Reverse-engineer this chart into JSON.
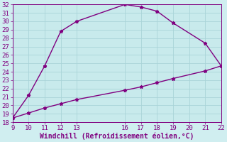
{
  "xlabel": "Windchill (Refroidissement éolien,°C)",
  "curve1_x": [
    9,
    10,
    11,
    12,
    13,
    16,
    17,
    18,
    19,
    21,
    22
  ],
  "curve1_y": [
    18.5,
    21.2,
    24.7,
    28.8,
    30.0,
    32.0,
    31.7,
    31.2,
    29.8,
    27.4,
    24.7
  ],
  "curve2_x": [
    9,
    10,
    11,
    12,
    13,
    16,
    17,
    18,
    19,
    21,
    22
  ],
  "curve2_y": [
    18.5,
    19.1,
    19.7,
    20.2,
    20.7,
    21.8,
    22.2,
    22.7,
    23.2,
    24.1,
    24.7
  ],
  "line_color": "#800080",
  "marker_color": "#800080",
  "bg_color": "#d0eef0",
  "plot_bg_color": "#c8eaec",
  "grid_color": "#aad4d8",
  "xlim": [
    9,
    22
  ],
  "ylim": [
    18,
    32
  ],
  "xticks": [
    9,
    10,
    11,
    12,
    13,
    16,
    17,
    18,
    19,
    20,
    21,
    22
  ],
  "yticks": [
    18,
    19,
    20,
    21,
    22,
    23,
    24,
    25,
    26,
    27,
    28,
    29,
    30,
    31,
    32
  ],
  "tick_color": "#800080",
  "label_color": "#800080",
  "font_size_axis": 6.5,
  "font_size_label": 7,
  "marker_style": "*",
  "marker_size": 3.5,
  "linewidth": 1.0
}
